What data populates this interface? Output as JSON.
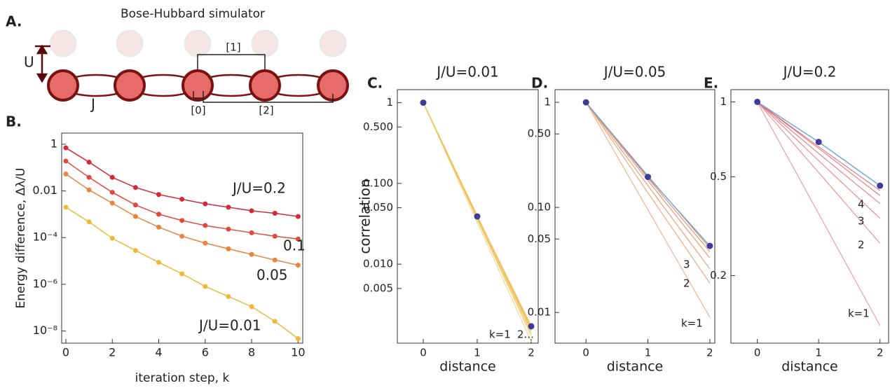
{
  "panel_a": {
    "label": "A.",
    "title": "Bose-Hubbard simulator",
    "u": "U",
    "j": "J",
    "bracket_1": "[1]",
    "bracket_0": "[0]",
    "bracket_2": "[2]"
  },
  "chart_data": [
    {
      "type": "line",
      "label": "B.",
      "xlabel": "iteration step, k",
      "ylabel": "Energy difference, Δλ/U",
      "log_y": true,
      "x": [
        0,
        1,
        2,
        3,
        4,
        5,
        6,
        7,
        8,
        9,
        10
      ],
      "xlim": [
        -0.18,
        10.2
      ],
      "xticks": [
        0,
        2,
        4,
        6,
        8,
        10
      ],
      "ylim": [
        3e-09,
        3
      ],
      "yticks": [
        1,
        0.01,
        {
          "value": 0.0001,
          "label": "10⁻⁴"
        },
        {
          "value": 1e-06,
          "label": "10⁻⁶"
        },
        {
          "value": 1e-08,
          "label": "10⁻⁸"
        }
      ],
      "series": [
        {
          "name": "J/U=0.2",
          "color": "#d42a38",
          "marker_color": "#d42a38",
          "values": [
            0.7,
            0.17,
            0.038,
            0.014,
            0.007,
            0.0044,
            0.0028,
            0.002,
            0.0014,
            0.0011,
            0.0008
          ]
        },
        {
          "name": "0.1",
          "color": "#e04a3c",
          "marker_color": "#e04a3c",
          "values": [
            0.19,
            0.038,
            0.0087,
            0.0025,
            0.001,
            0.00054,
            0.00033,
            0.00023,
            0.00016,
            0.000115,
            8.7e-05
          ]
        },
        {
          "name": "0.05",
          "color": "#e8843e",
          "marker_color": "#e8843e",
          "values": [
            0.053,
            0.011,
            0.003,
            0.0008,
            0.00028,
            0.000115,
            5.8e-05,
            3.3e-05,
            1.9e-05,
            1.1e-05,
            6.6e-06
          ]
        },
        {
          "name": "J/U=0.01",
          "color": "#f0b83a",
          "marker_color": "#f0b83a",
          "values": [
            0.002,
            0.00047,
            9.3e-05,
            2.8e-05,
            8.7e-06,
            2.8e-06,
            8.1e-07,
            3e-07,
            1.1e-07,
            2.6e-08,
            4.7e-09
          ]
        }
      ]
    },
    {
      "type": "line",
      "label": "C.",
      "title": "J/U=0.01",
      "xlabel": "distance",
      "ylabel": "correlation",
      "log_y": true,
      "x": [
        0,
        1,
        2
      ],
      "xlim": [
        -0.48,
        2.13
      ],
      "xticks": [
        0,
        1,
        2
      ],
      "ylim": [
        0.00105,
        1.45
      ],
      "yticks": [
        1,
        {
          "value": 0.5,
          "label": "0.500"
        },
        {
          "value": 0.1,
          "label": "0.100"
        },
        {
          "value": 0.05,
          "label": "0.050"
        },
        {
          "value": 0.01,
          "label": "0.010"
        },
        0.005
      ],
      "annotations": [
        "k=1",
        "2..."
      ],
      "series": [
        {
          "color": "#f3cf7a",
          "values": [
            1,
            0.033,
            0.0011
          ]
        },
        {
          "color": "#f1c766",
          "values": [
            1,
            0.036,
            0.0013
          ]
        },
        {
          "color": "#f0c05a",
          "values": [
            1,
            0.037,
            0.0014
          ]
        },
        {
          "color": "#eeb94f",
          "values": [
            1,
            0.039,
            0.0015
          ]
        },
        {
          "color": "#edb446",
          "values": [
            1,
            0.04,
            0.0016
          ]
        },
        {
          "color": "#f0c05a",
          "marker_color": "#3d3d99",
          "values": [
            1,
            0.039,
            0.0017
          ]
        }
      ]
    },
    {
      "type": "line",
      "label": "D.",
      "title": "J/U=0.05",
      "xlabel": "distance",
      "log_y": true,
      "x": [
        0,
        1,
        2
      ],
      "xlim": [
        -0.5,
        2.08
      ],
      "xticks": [
        0,
        1,
        2
      ],
      "ylim": [
        0.0051,
        1.32
      ],
      "yticks": [
        1,
        {
          "value": 0.5,
          "label": "0.50"
        },
        {
          "value": 0.1,
          "label": "0.10"
        },
        0.05,
        0.01
      ],
      "annotations": [
        "3",
        "2",
        "k=1"
      ],
      "series": [
        {
          "color": "#f2a574",
          "values": [
            1,
            0.095,
            0.009
          ]
        },
        {
          "color": "#ef9a68",
          "values": [
            1,
            0.138,
            0.019
          ]
        },
        {
          "color": "#ec905f",
          "values": [
            1,
            0.161,
            0.026
          ]
        },
        {
          "color": "#ea8858",
          "values": [
            1,
            0.18,
            0.033
          ]
        },
        {
          "color": "#e88253",
          "values": [
            1,
            0.19,
            0.038
          ]
        },
        {
          "color": "#e67e50",
          "values": [
            1,
            0.2,
            0.041
          ]
        },
        {
          "color": "#6fa8dc",
          "marker_color": "#3d3d99",
          "values": [
            1,
            0.195,
            0.043
          ]
        }
      ]
    },
    {
      "type": "line",
      "label": "E.",
      "title": "J/U=0.2",
      "xlabel": "distance",
      "log_y": true,
      "x": [
        0,
        1,
        2
      ],
      "xlim": [
        -0.43,
        2.14
      ],
      "xticks": [
        0,
        1,
        2
      ],
      "ylim": [
        0.107,
        1.12
      ],
      "yticks": [
        1,
        0.5,
        0.2
      ],
      "annotations": [
        "4",
        "3",
        "2",
        "k=1"
      ],
      "series": [
        {
          "color": "#ee8a92",
          "values": [
            1,
            0.355,
            0.126
          ]
        },
        {
          "color": "#ec7f88",
          "values": [
            1,
            0.52,
            0.27
          ]
        },
        {
          "color": "#ea7680",
          "values": [
            1,
            0.58,
            0.34
          ]
        },
        {
          "color": "#e86e79",
          "values": [
            1,
            0.62,
            0.39
          ]
        },
        {
          "color": "#e66872",
          "values": [
            1,
            0.65,
            0.42
          ]
        },
        {
          "color": "#e4626d",
          "values": [
            1,
            0.66,
            0.44
          ]
        },
        {
          "color": "#6fa8dc",
          "marker_color": "#3d3d99",
          "values": [
            1,
            0.69,
            0.46
          ]
        }
      ]
    }
  ]
}
